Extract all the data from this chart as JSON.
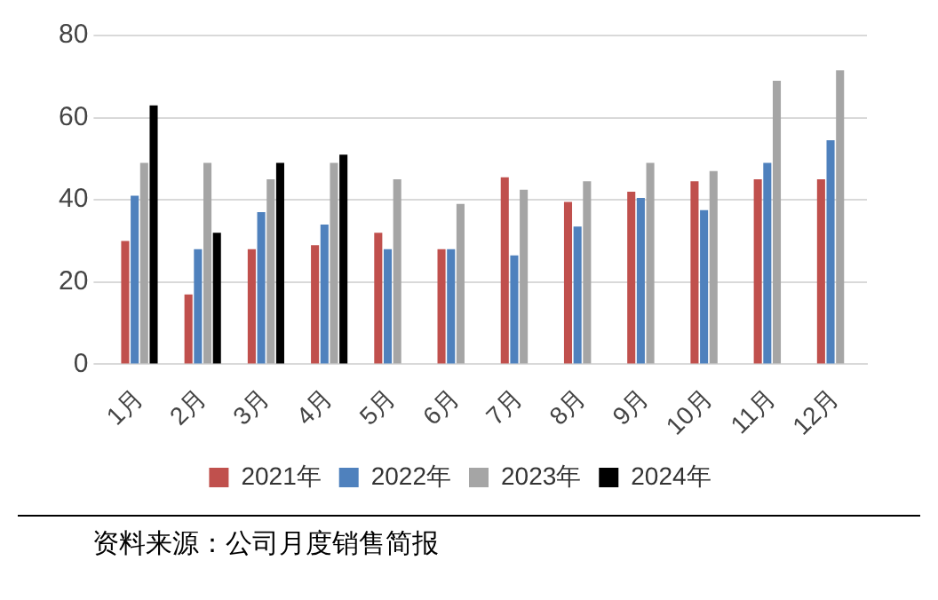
{
  "chart_data": {
    "type": "bar",
    "categories": [
      "1月",
      "2月",
      "3月",
      "4月",
      "5月",
      "6月",
      "7月",
      "8月",
      "9月",
      "10月",
      "11月",
      "12月"
    ],
    "series": [
      {
        "name": "2021年",
        "color": "#c0504d",
        "values": [
          30,
          17,
          28,
          29,
          32,
          28,
          45.5,
          39.5,
          42,
          44.5,
          45,
          45
        ]
      },
      {
        "name": "2022年",
        "color": "#4f81bd",
        "values": [
          41,
          28,
          37,
          34,
          28,
          28,
          26.5,
          33.5,
          40.5,
          37.5,
          49,
          54.5
        ]
      },
      {
        "name": "2023年",
        "color": "#a5a5a5",
        "values": [
          49,
          49,
          45,
          49,
          45,
          39,
          42.5,
          44.5,
          49,
          47,
          69,
          71.5
        ]
      },
      {
        "name": "2024年",
        "color": "#000000",
        "values": [
          63,
          32,
          49,
          51,
          null,
          null,
          null,
          null,
          null,
          null,
          null,
          null
        ]
      }
    ],
    "ylim": [
      0,
      80
    ],
    "yticks": [
      0,
      20,
      40,
      60,
      80
    ],
    "grid": "y",
    "legend": "bottom",
    "annotations": [
      "资料来源：公司月度销售简报"
    ]
  }
}
